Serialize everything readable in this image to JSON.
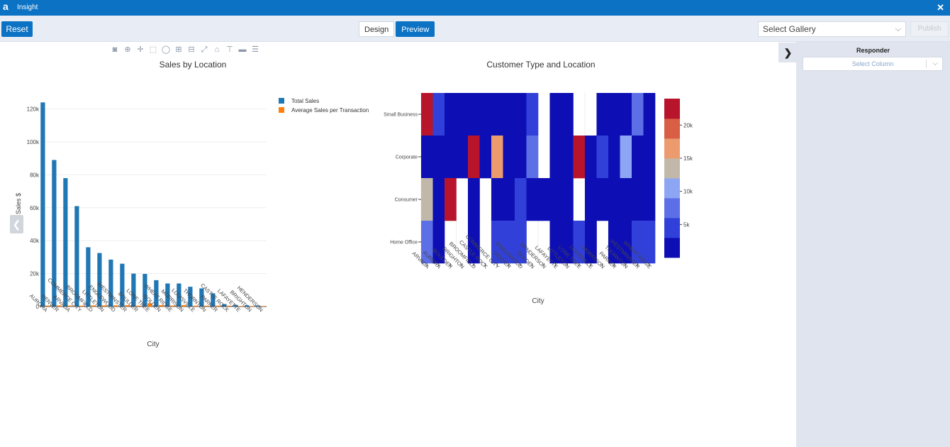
{
  "titlebar": {
    "logo": "a",
    "title": "Insight",
    "close": "✕"
  },
  "toolbar": {
    "reset_label": "Reset",
    "design_label": "Design",
    "preview_label": "Preview",
    "gallery_placeholder": "Select Gallery",
    "disabled_btn": "Publish"
  },
  "panel": {
    "toggle": "❯",
    "title": "Responder",
    "select_column": "Select Column"
  },
  "nav": {
    "prev": "❮",
    "next": "❯"
  },
  "modebar": [
    "camera-icon",
    "zoom-icon",
    "pan-icon",
    "box-select-icon",
    "lasso-icon",
    "zoom-in-icon",
    "zoom-out-icon",
    "autoscale-icon",
    "reset-axes-icon",
    "spike-lines-icon",
    "hover-closest-icon",
    "hover-compare-icon"
  ],
  "chart_data": [
    {
      "type": "bar",
      "title": "Sales by Location",
      "xlabel": "City",
      "ylabel": "Sales $",
      "ylim": [
        0,
        125000
      ],
      "yticks": [
        "0",
        "20k",
        "40k",
        "60k",
        "80k",
        "100k",
        "120k"
      ],
      "legend_position": "top-right",
      "categories": [
        "AURORA",
        "DENVER",
        "ARVADA",
        "COMMERCE CITY",
        "BROOMFIELD",
        "LITTLETON",
        "ENGLEWOOD",
        "WESTMINSTER",
        "BOULDER",
        "LONE TREE",
        "GOLDEN",
        "WHEAT RIDGE",
        "MORRISON",
        "LOUISVILLE",
        "THORNTON",
        "PARKER",
        "CASTLE ROCK",
        "LAFAYETTE",
        "BRIGHTON",
        "HENDERSON"
      ],
      "series": [
        {
          "name": "Total Sales",
          "color": "#1f77b4",
          "values": [
            124000,
            89000,
            78000,
            61000,
            36000,
            32500,
            28500,
            26000,
            20000,
            19800,
            16000,
            14000,
            14000,
            12000,
            11000,
            8000,
            1500,
            1000,
            700,
            500
          ]
        },
        {
          "name": "Average Sales per Transaction",
          "color": "#ff7f0e",
          "values": [
            600,
            700,
            600,
            500,
            700,
            700,
            700,
            800,
            500,
            2000,
            900,
            600,
            900,
            500,
            500,
            500,
            500,
            300,
            300,
            300
          ]
        }
      ]
    },
    {
      "type": "heatmap",
      "title": "Customer Type and Location",
      "xlabel": "City",
      "x": [
        "ARVADA",
        "AURORA",
        "BOULDER",
        "BRIGHTON",
        "BROOMFIELD",
        "CASTLE ROCK",
        "COMMERCE CITY",
        "DENVER",
        "ENGLEWOOD",
        "GOLDEN",
        "HENDERSON",
        "LAFAYETTE",
        "LITTLETON",
        "LONE TREE",
        "LOUISVILLE",
        "MORRISON",
        "PARKER",
        "THORNTON",
        "WESTMINSTER",
        "WHEAT RIDGE"
      ],
      "y": [
        "Small Business",
        "Corporate",
        "Consumer",
        "Home Office"
      ],
      "z": [
        [
          21000,
          5000,
          1500,
          1500,
          1200,
          1500,
          1000,
          1500,
          2000,
          3000,
          null,
          1500,
          1500,
          null,
          null,
          2000,
          1500,
          1500,
          6000,
          2500
        ],
        [
          1500,
          1500,
          1500,
          1500,
          24000,
          1500,
          16000,
          1500,
          1500,
          6000,
          null,
          1500,
          1500,
          21000,
          2500,
          3000,
          1500,
          11000,
          1500,
          1500
        ],
        [
          12000,
          1500,
          21000,
          null,
          1500,
          null,
          1500,
          1500,
          4000,
          1500,
          1500,
          1500,
          1500,
          null,
          1500,
          1500,
          1500,
          1500,
          1500,
          1500
        ],
        [
          6000,
          2000,
          null,
          null,
          1200,
          null,
          3000,
          3000,
          3000,
          null,
          null,
          1500,
          1500,
          3000,
          1500,
          null,
          1500,
          1500,
          3500,
          3000
        ]
      ],
      "colorscale": [
        "#0d0fb5",
        "#3140d8",
        "#5d6fe6",
        "#8da6f3",
        "#c2b8aa",
        "#ec9b6f",
        "#d85f45",
        "#b8142c"
      ],
      "colorbar_ticks": [
        "5k",
        "10k",
        "15k",
        "20k"
      ],
      "zlim": [
        0,
        24000
      ]
    }
  ]
}
